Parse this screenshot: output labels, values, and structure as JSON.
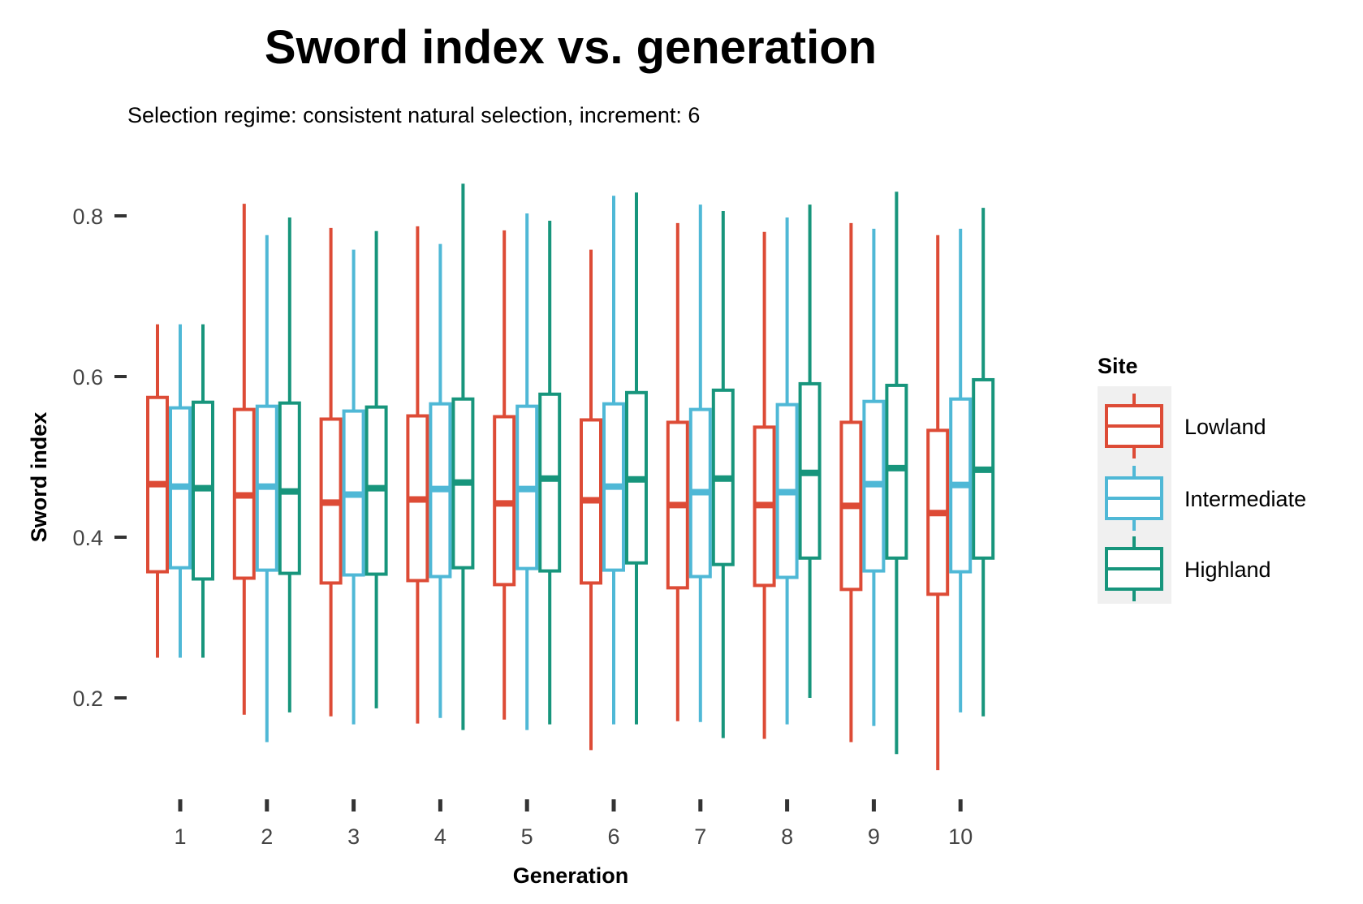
{
  "chart_data": {
    "type": "boxplot",
    "title": "Sword index vs. generation",
    "subtitle": "Selection regime: consistent natural selection, increment: 6",
    "xlabel": "Generation",
    "ylabel": "Sword index",
    "categories": [
      "1",
      "2",
      "3",
      "4",
      "5",
      "6",
      "7",
      "8",
      "9",
      "10"
    ],
    "y_ticks": [
      "0.2",
      "0.4",
      "0.6",
      "0.8"
    ],
    "y_tick_values": [
      0.2,
      0.4,
      0.6,
      0.8
    ],
    "ylim": [
      0.09,
      0.86
    ],
    "grid": false,
    "legend": {
      "title": "Site",
      "position": "right"
    },
    "series": [
      {
        "name": "Lowland",
        "color": "#dd4b36",
        "boxes": [
          {
            "min": 0.25,
            "q1": 0.357,
            "median": 0.466,
            "q3": 0.574,
            "max": 0.665
          },
          {
            "min": 0.179,
            "q1": 0.349,
            "median": 0.452,
            "q3": 0.559,
            "max": 0.815
          },
          {
            "min": 0.177,
            "q1": 0.343,
            "median": 0.443,
            "q3": 0.547,
            "max": 0.785
          },
          {
            "min": 0.168,
            "q1": 0.346,
            "median": 0.447,
            "q3": 0.551,
            "max": 0.787
          },
          {
            "min": 0.173,
            "q1": 0.341,
            "median": 0.442,
            "q3": 0.55,
            "max": 0.782
          },
          {
            "min": 0.135,
            "q1": 0.343,
            "median": 0.446,
            "q3": 0.546,
            "max": 0.758
          },
          {
            "min": 0.171,
            "q1": 0.337,
            "median": 0.44,
            "q3": 0.543,
            "max": 0.791
          },
          {
            "min": 0.149,
            "q1": 0.34,
            "median": 0.44,
            "q3": 0.537,
            "max": 0.78
          },
          {
            "min": 0.145,
            "q1": 0.335,
            "median": 0.439,
            "q3": 0.543,
            "max": 0.791
          },
          {
            "min": 0.11,
            "q1": 0.329,
            "median": 0.43,
            "q3": 0.533,
            "max": 0.776
          }
        ]
      },
      {
        "name": "Intermediate",
        "color": "#4fb8d6",
        "boxes": [
          {
            "min": 0.25,
            "q1": 0.362,
            "median": 0.463,
            "q3": 0.561,
            "max": 0.665
          },
          {
            "min": 0.145,
            "q1": 0.359,
            "median": 0.463,
            "q3": 0.563,
            "max": 0.776
          },
          {
            "min": 0.167,
            "q1": 0.353,
            "median": 0.453,
            "q3": 0.557,
            "max": 0.758
          },
          {
            "min": 0.175,
            "q1": 0.351,
            "median": 0.46,
            "q3": 0.566,
            "max": 0.765
          },
          {
            "min": 0.16,
            "q1": 0.361,
            "median": 0.46,
            "q3": 0.563,
            "max": 0.803
          },
          {
            "min": 0.167,
            "q1": 0.359,
            "median": 0.463,
            "q3": 0.566,
            "max": 0.825
          },
          {
            "min": 0.17,
            "q1": 0.351,
            "median": 0.456,
            "q3": 0.559,
            "max": 0.814
          },
          {
            "min": 0.167,
            "q1": 0.35,
            "median": 0.456,
            "q3": 0.565,
            "max": 0.798
          },
          {
            "min": 0.165,
            "q1": 0.358,
            "median": 0.466,
            "q3": 0.569,
            "max": 0.784
          },
          {
            "min": 0.182,
            "q1": 0.357,
            "median": 0.465,
            "q3": 0.572,
            "max": 0.784
          }
        ]
      },
      {
        "name": "Highland",
        "color": "#17957c",
        "boxes": [
          {
            "min": 0.25,
            "q1": 0.348,
            "median": 0.461,
            "q3": 0.568,
            "max": 0.665
          },
          {
            "min": 0.182,
            "q1": 0.355,
            "median": 0.457,
            "q3": 0.567,
            "max": 0.798
          },
          {
            "min": 0.187,
            "q1": 0.354,
            "median": 0.461,
            "q3": 0.562,
            "max": 0.781
          },
          {
            "min": 0.16,
            "q1": 0.362,
            "median": 0.468,
            "q3": 0.572,
            "max": 0.84
          },
          {
            "min": 0.167,
            "q1": 0.358,
            "median": 0.473,
            "q3": 0.578,
            "max": 0.794
          },
          {
            "min": 0.167,
            "q1": 0.368,
            "median": 0.472,
            "q3": 0.58,
            "max": 0.829
          },
          {
            "min": 0.15,
            "q1": 0.366,
            "median": 0.473,
            "q3": 0.583,
            "max": 0.806
          },
          {
            "min": 0.2,
            "q1": 0.374,
            "median": 0.48,
            "q3": 0.591,
            "max": 0.814
          },
          {
            "min": 0.13,
            "q1": 0.374,
            "median": 0.486,
            "q3": 0.589,
            "max": 0.83
          },
          {
            "min": 0.177,
            "q1": 0.374,
            "median": 0.484,
            "q3": 0.596,
            "max": 0.81
          }
        ]
      }
    ]
  }
}
